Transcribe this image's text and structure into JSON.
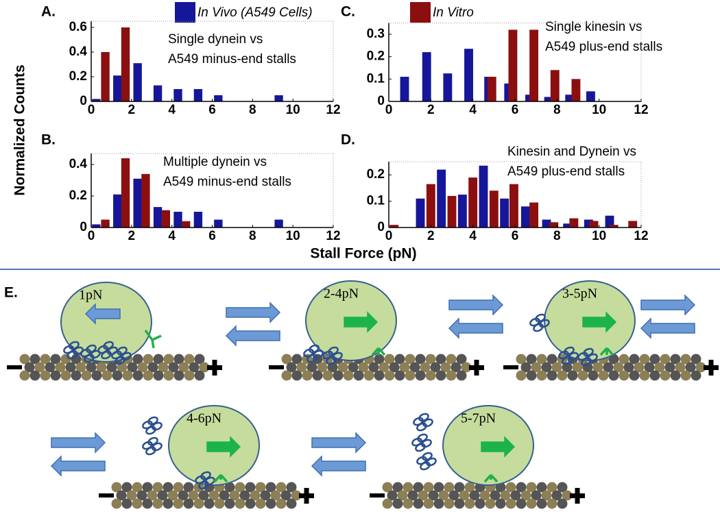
{
  "chart_data": [
    {
      "type": "bar",
      "panel": "A.",
      "annotation": [
        "Single dynein vs",
        "A549 minus-end stalls"
      ],
      "xlim": [
        0,
        12
      ],
      "xticks": [
        0,
        2,
        4,
        6,
        8,
        10,
        12
      ],
      "ylim": [
        0,
        0.65
      ],
      "yticks": [
        0,
        0.2,
        0.4,
        0.6
      ],
      "series": [
        {
          "color": "#16169a",
          "x": [
            0.25,
            1.3,
            2.3,
            3.3,
            4.3,
            5.3,
            6.3,
            9.3
          ],
          "values": [
            0.02,
            0.21,
            0.31,
            0.13,
            0.1,
            0.1,
            0.05,
            0.05
          ]
        },
        {
          "color": "#8b0f0f",
          "x": [
            0.7,
            1.7
          ],
          "values": [
            0.4,
            0.6
          ]
        }
      ]
    },
    {
      "type": "bar",
      "panel": "C.",
      "annotation": [
        "Single kinesin vs",
        "A549 plus-end stalls"
      ],
      "xlim": [
        0,
        12
      ],
      "xticks": [
        0,
        2,
        4,
        6,
        8,
        10,
        12
      ],
      "ylim": [
        0,
        0.35
      ],
      "yticks": [
        0,
        0.1,
        0.2,
        0.3
      ],
      "series": [
        {
          "color": "#16169a",
          "x": [
            0.75,
            1.8,
            2.8,
            3.8,
            4.75,
            5.7,
            6.7,
            7.6,
            8.6,
            9.6
          ],
          "values": [
            0.11,
            0.22,
            0.125,
            0.235,
            0.11,
            0.08,
            0.03,
            0.02,
            0.03,
            0.045
          ]
        },
        {
          "color": "#8b0f0f",
          "x": [
            4.9,
            5.9,
            6.9,
            7.9,
            8.9
          ],
          "values": [
            0.11,
            0.32,
            0.32,
            0.14,
            0.1
          ]
        }
      ]
    },
    {
      "type": "bar",
      "panel": "B.",
      "annotation": [
        "Multiple dynein vs",
        "A549 minus-end stalls"
      ],
      "xlim": [
        0,
        12
      ],
      "xticks": [
        0,
        2,
        4,
        6,
        8,
        10,
        12
      ],
      "ylim": [
        0,
        0.47
      ],
      "yticks": [
        0,
        0.2,
        0.4
      ],
      "series": [
        {
          "color": "#16169a",
          "x": [
            0.25,
            1.3,
            2.3,
            3.3,
            4.3,
            5.3,
            6.3,
            9.3
          ],
          "values": [
            0.02,
            0.21,
            0.31,
            0.13,
            0.1,
            0.1,
            0.05,
            0.05
          ]
        },
        {
          "color": "#8b0f0f",
          "x": [
            0.7,
            1.7,
            2.7,
            3.7,
            4.7
          ],
          "values": [
            0.05,
            0.44,
            0.34,
            0.11,
            0.04
          ]
        }
      ]
    },
    {
      "type": "bar",
      "panel": "D.",
      "annotation": [
        "Kinesin and Dynein vs",
        "A549 plus-end stalls"
      ],
      "xlim": [
        0,
        12
      ],
      "xticks": [
        0,
        2,
        4,
        6,
        8,
        10,
        12
      ],
      "ylim": [
        0,
        0.25
      ],
      "yticks": [
        0,
        0.1,
        0.2
      ],
      "series": [
        {
          "color": "#16169a",
          "x": [
            1.5,
            2.5,
            3.5,
            4.5,
            5.5,
            6.5,
            7.5,
            8.5,
            9.5,
            10.5
          ],
          "values": [
            0.11,
            0.22,
            0.125,
            0.235,
            0.11,
            0.08,
            0.03,
            0.015,
            0.03,
            0.045
          ]
        },
        {
          "color": "#8b0f0f",
          "x": [
            0.25,
            2.0,
            3.0,
            4.0,
            5.0,
            5.95,
            6.9,
            7.85,
            8.8,
            9.75,
            10.7,
            11.6
          ],
          "values": [
            0.01,
            0.165,
            0.12,
            0.19,
            0.14,
            0.165,
            0.095,
            0.02,
            0.035,
            0.025,
            0.01,
            0.025
          ]
        }
      ]
    }
  ],
  "figure": {
    "legend": [
      {
        "name": "In Vivo (A549 Cells)",
        "color": "#16169a"
      },
      {
        "name": "In Vitro",
        "color": "#8b0f0f"
      }
    ],
    "ylabel": "Normalized Counts",
    "xlabel": "Stall Force (pN)"
  },
  "diagram": {
    "label": "E.",
    "states": [
      "1pN",
      "2-4pN",
      "3-5pN",
      "4-6pN",
      "5-7pN"
    ]
  }
}
